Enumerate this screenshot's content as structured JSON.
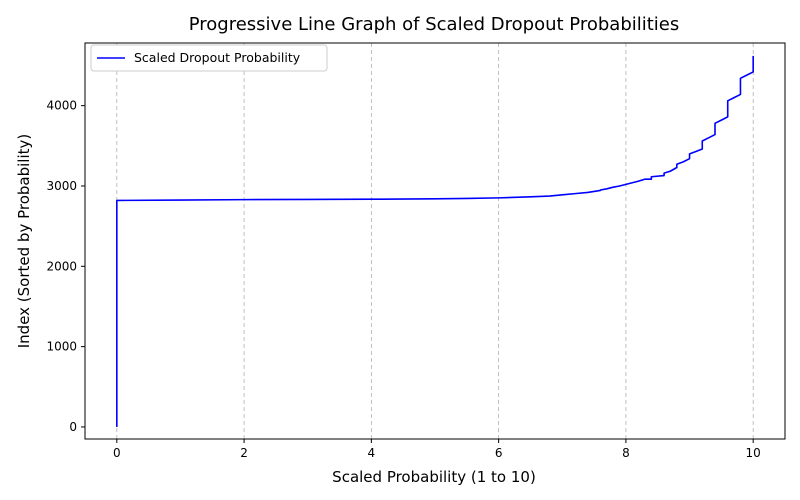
{
  "chart_data": {
    "type": "line",
    "title": "Progressive Line Graph of Scaled Dropout Probabilities",
    "xlabel": "Scaled Probability (1 to 10)",
    "ylabel": "Index (Sorted by Probability)",
    "xlim": [
      -0.5,
      10.5
    ],
    "ylim": [
      -150,
      4780
    ],
    "xticks": [
      0,
      2,
      4,
      6,
      8,
      10
    ],
    "yticks": [
      0,
      1000,
      2000,
      3000,
      4000
    ],
    "xgrid": true,
    "ygrid": false,
    "legend_position": "top-left",
    "series": [
      {
        "name": "Scaled Dropout Probability",
        "color": "#0000ff",
        "points": [
          [
            0,
            0
          ],
          [
            0,
            2820
          ],
          [
            1,
            2825
          ],
          [
            2,
            2830
          ],
          [
            3,
            2832
          ],
          [
            4,
            2835
          ],
          [
            5,
            2840
          ],
          [
            5.5,
            2845
          ],
          [
            6,
            2852
          ],
          [
            6.5,
            2865
          ],
          [
            6.8,
            2875
          ],
          [
            7.0,
            2890
          ],
          [
            7.2,
            2905
          ],
          [
            7.4,
            2920
          ],
          [
            7.6,
            2945
          ],
          [
            7.6,
            2950
          ],
          [
            7.7,
            2965
          ],
          [
            7.8,
            2985
          ],
          [
            7.9,
            3000
          ],
          [
            8.0,
            3020
          ],
          [
            8.1,
            3040
          ],
          [
            8.2,
            3060
          ],
          [
            8.3,
            3085
          ],
          [
            8.4,
            3085
          ],
          [
            8.4,
            3115
          ],
          [
            8.6,
            3130
          ],
          [
            8.6,
            3160
          ],
          [
            8.7,
            3185
          ],
          [
            8.8,
            3230
          ],
          [
            8.8,
            3270
          ],
          [
            8.9,
            3300
          ],
          [
            9.0,
            3340
          ],
          [
            9.0,
            3400
          ],
          [
            9.1,
            3430
          ],
          [
            9.2,
            3460
          ],
          [
            9.2,
            3560
          ],
          [
            9.3,
            3600
          ],
          [
            9.4,
            3640
          ],
          [
            9.4,
            3780
          ],
          [
            9.5,
            3820
          ],
          [
            9.6,
            3860
          ],
          [
            9.6,
            4060
          ],
          [
            9.7,
            4100
          ],
          [
            9.8,
            4140
          ],
          [
            9.8,
            4340
          ],
          [
            9.9,
            4380
          ],
          [
            10.0,
            4420
          ],
          [
            10.0,
            4620
          ]
        ]
      }
    ]
  }
}
